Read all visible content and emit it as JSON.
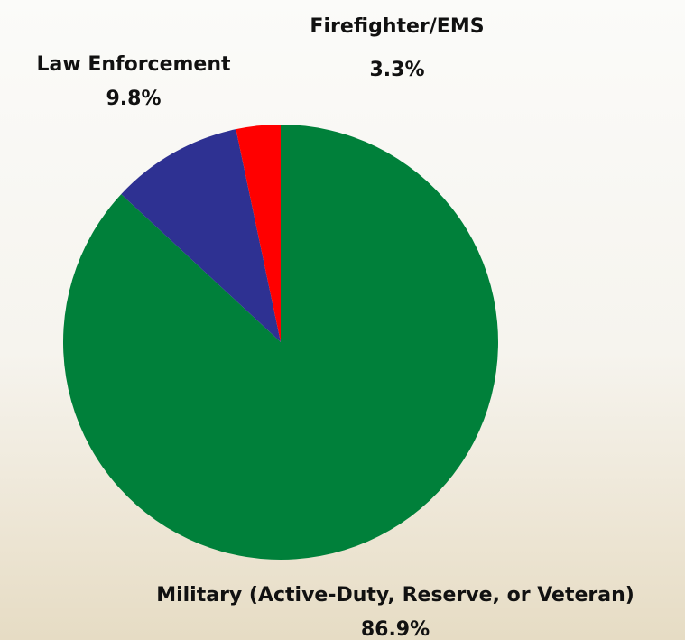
{
  "chart_data": {
    "type": "pie",
    "categories": [
      "Military (Active-Duty, Reserve, or Veteran)",
      "Law Enforcement",
      "Firefighter/EMS"
    ],
    "values": [
      86.9,
      9.8,
      3.3
    ],
    "value_labels": [
      "86.9%",
      "9.8%",
      "3.3%"
    ],
    "colors": [
      "#00803a",
      "#2e3192",
      "#ff0000"
    ]
  }
}
